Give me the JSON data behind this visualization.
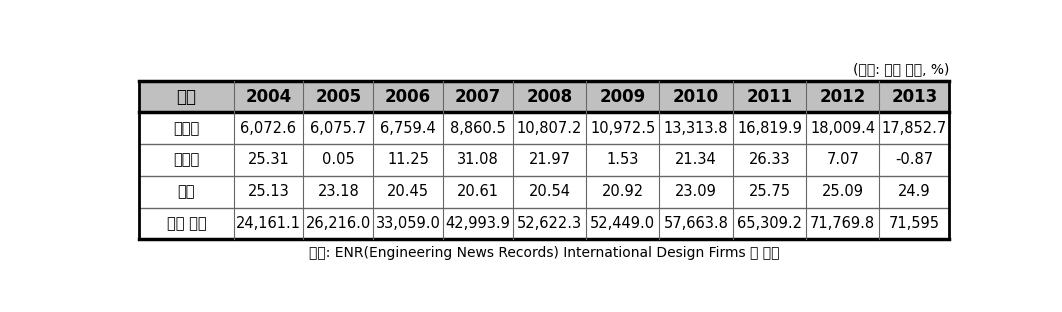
{
  "unit_text": "(단위: 백만 달러, %)",
  "headers": [
    "연도",
    "2004",
    "2005",
    "2006",
    "2007",
    "2008",
    "2009",
    "2010",
    "2011",
    "2012",
    "2013"
  ],
  "rows": [
    [
      "아시아",
      "6,072.6",
      "6,075.7",
      "6,759.4",
      "8,860.5",
      "10,807.2",
      "10,972.5",
      "13,313.8",
      "16,819.9",
      "18,009.4",
      "17,852.7"
    ],
    [
      "성장률",
      "25.31",
      "0.05",
      "11.25",
      "31.08",
      "21.97",
      "1.53",
      "21.34",
      "26.33",
      "7.07",
      "-0.87"
    ],
    [
      "비중",
      "25.13",
      "23.18",
      "20.45",
      "20.61",
      "20.54",
      "20.92",
      "23.09",
      "25.75",
      "25.09",
      "24.9"
    ],
    [
      "세계 전체",
      "24,161.1",
      "26,216.0",
      "33,059.0",
      "42,993.9",
      "52,622.3",
      "52,449.0",
      "57,663.8",
      "65,309.2",
      "71,769.8",
      "71,595"
    ]
  ],
  "footer_text": "자료: ENR(Engineering News Records) International Design Firms 각 연호",
  "header_bg_color": "#c0c0c0",
  "header_text_color": "#000000",
  "cell_bg_color": "#ffffff",
  "thick_border_color": "#000000",
  "thin_border_color": "#666666",
  "header_fontsize": 12,
  "cell_fontsize": 10.5,
  "footer_fontsize": 10,
  "unit_fontsize": 10,
  "col_widths_ratio": [
    1.35,
    1.0,
    1.0,
    1.0,
    1.0,
    1.05,
    1.05,
    1.05,
    1.05,
    1.05,
    1.0
  ]
}
